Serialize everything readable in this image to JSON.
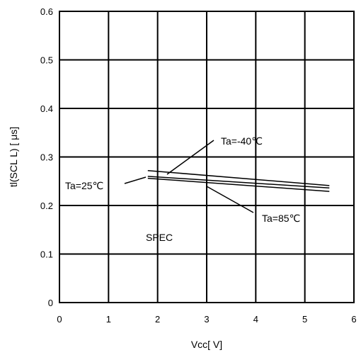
{
  "chart_data": {
    "type": "line",
    "xlabel": "Vcc[ V]",
    "ylabel": "tl(SCL L) [ μs]",
    "xlim": [
      0,
      6
    ],
    "ylim": [
      0,
      0.6
    ],
    "x_ticks": [
      "0",
      "1",
      "2",
      "3",
      "4",
      "5",
      "6"
    ],
    "y_ticks": [
      "0",
      "0.1",
      "0.2",
      "0.3",
      "0.4",
      "0.5",
      "0.6"
    ],
    "grid": true,
    "series": [
      {
        "name": "Ta=-40℃",
        "x": [
          1.8,
          5.5
        ],
        "y": [
          0.272,
          0.241
        ]
      },
      {
        "name": "Ta=25℃",
        "x": [
          1.8,
          5.5
        ],
        "y": [
          0.26,
          0.236
        ]
      },
      {
        "name": "Ta=85℃",
        "x": [
          1.8,
          5.5
        ],
        "y": [
          0.256,
          0.229
        ]
      }
    ],
    "annotations": [
      {
        "text": "SPEC"
      }
    ]
  }
}
